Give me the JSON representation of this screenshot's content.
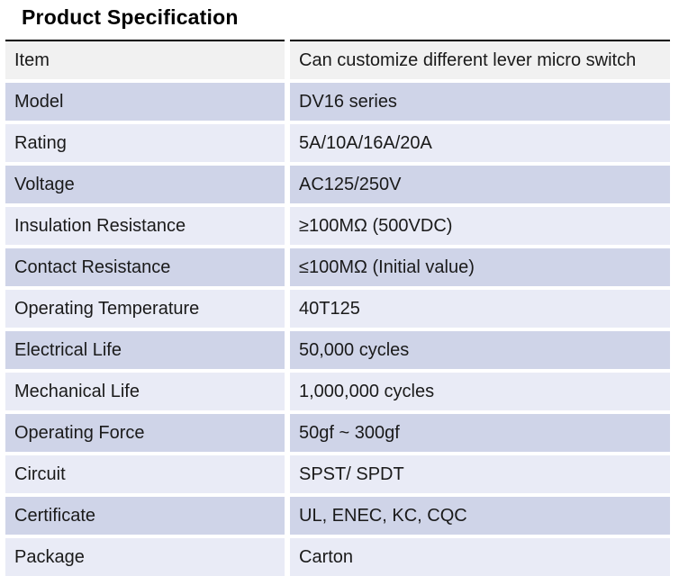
{
  "page": {
    "title": "Product Specification"
  },
  "table": {
    "rows": [
      {
        "label": "Item",
        "value": "Can customize different lever micro switch"
      },
      {
        "label": "Model",
        "value": "DV16 series"
      },
      {
        "label": "Rating",
        "value": "5A/10A/16A/20A"
      },
      {
        "label": "Voltage",
        "value": "AC125/250V"
      },
      {
        "label": "Insulation Resistance",
        "value": "≥100MΩ (500VDC)"
      },
      {
        "label": "Contact Resistance",
        "value": "≤100MΩ (Initial value)"
      },
      {
        "label": "Operating Temperature",
        "value": "40T125"
      },
      {
        "label": "Electrical Life",
        "value": "50,000 cycles"
      },
      {
        "label": "Mechanical Life",
        "value": "1,000,000 cycles"
      },
      {
        "label": "Operating Force",
        "value": "50gf ~ 300gf"
      },
      {
        "label": "Circuit",
        "value": "SPST/ SPDT"
      },
      {
        "label": "Certificate",
        "value": "UL, ENEC, KC, CQC"
      },
      {
        "label": "Package",
        "value": "Carton"
      }
    ]
  },
  "colors": {
    "row_gray": "#f1f1f1",
    "row_lavender_dark": "#cfd4e8",
    "row_lavender_light": "#e9ebf6",
    "title_rule": "#000000",
    "text": "#1a1a1a"
  }
}
